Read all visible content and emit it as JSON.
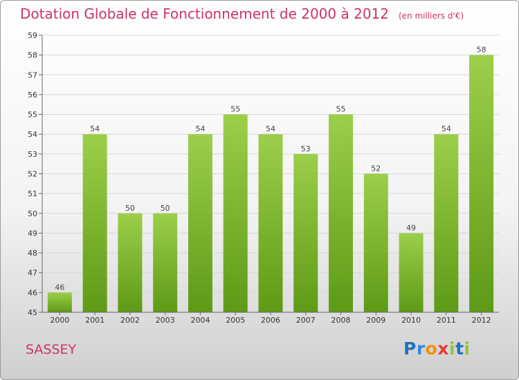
{
  "title": "Dotation Globale de Fonctionnement de 2000 à 2012",
  "subtitle": "(en milliers d'€)",
  "commune": "SASSEY",
  "logo": {
    "text": "Proxiti",
    "letters": [
      {
        "ch": "P",
        "color": "#1e73be"
      },
      {
        "ch": "r",
        "color": "#2e8bd6"
      },
      {
        "ch": "o",
        "color": "#f39200"
      },
      {
        "ch": "x",
        "color": "#e53935"
      },
      {
        "ch": "i",
        "color": "#8dc63f"
      },
      {
        "ch": "t",
        "color": "#1e73be"
      },
      {
        "ch": "i",
        "color": "#8dc63f"
      }
    ]
  },
  "colors": {
    "title": "#cc3366",
    "bar_top": "#9ccf4a",
    "bar_bottom": "#5e9a16"
  },
  "chart_data": {
    "type": "bar",
    "categories": [
      "2000",
      "2001",
      "2002",
      "2003",
      "2004",
      "2005",
      "2006",
      "2007",
      "2008",
      "2009",
      "2010",
      "2011",
      "2012"
    ],
    "values": [
      46,
      54,
      50,
      50,
      54,
      55,
      54,
      53,
      55,
      52,
      49,
      54,
      58
    ],
    "ylim": [
      45,
      59
    ],
    "yticks": [
      45,
      46,
      47,
      48,
      49,
      50,
      51,
      52,
      53,
      54,
      55,
      56,
      57,
      58,
      59
    ],
    "grid": true
  }
}
